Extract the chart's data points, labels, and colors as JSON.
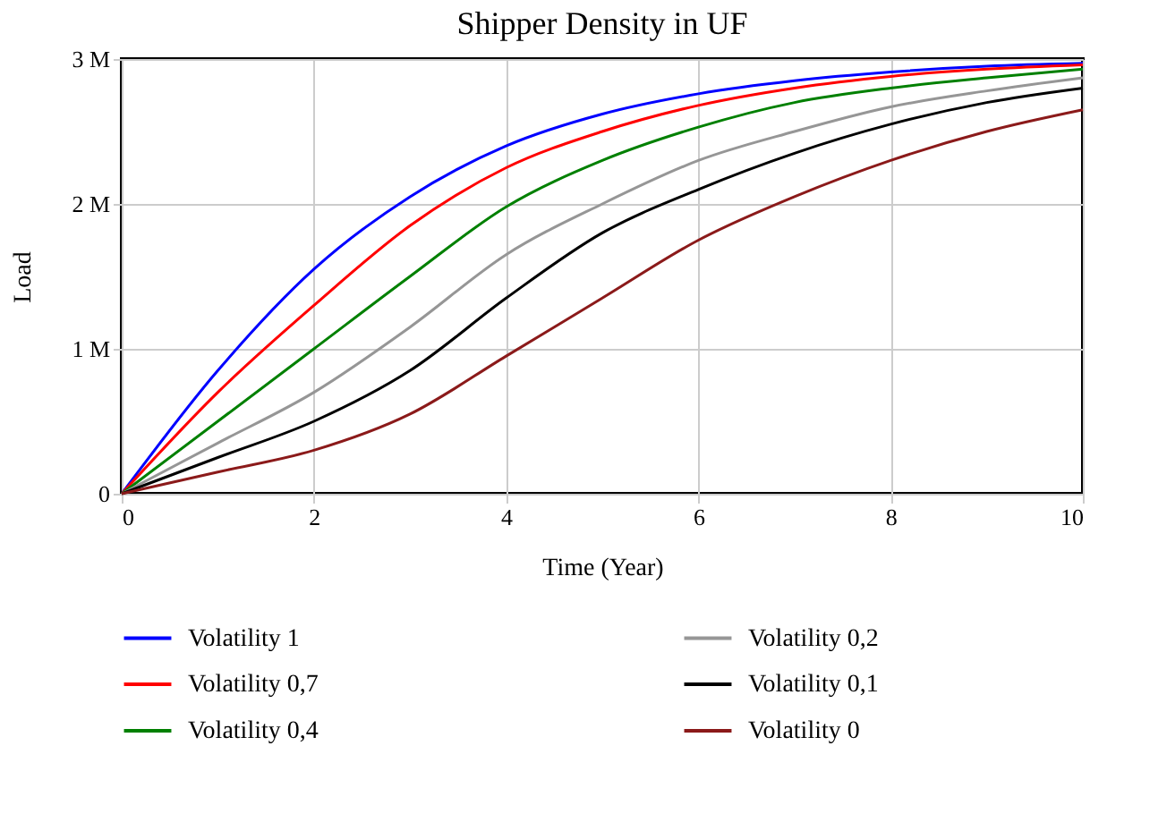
{
  "chart_data": {
    "type": "line",
    "title": "Shipper Density in UF",
    "xlabel": "Time (Year)",
    "ylabel": "Load",
    "x": [
      0,
      1,
      2,
      3,
      4,
      5,
      6,
      7,
      8,
      9,
      10
    ],
    "xlim": [
      0,
      10
    ],
    "xticks": [
      0,
      2,
      4,
      6,
      8,
      10
    ],
    "ylim": [
      0,
      3000000
    ],
    "yticks": [
      {
        "value": 0,
        "label": "0"
      },
      {
        "value": 1000000,
        "label": "1 M"
      },
      {
        "value": 2000000,
        "label": "2 M"
      },
      {
        "value": 3000000,
        "label": "3 M"
      }
    ],
    "grid": true,
    "legend": "bottom",
    "marker": "none",
    "line_style": "solid",
    "series": [
      {
        "name": "Volatility 1",
        "color": "#0000ff",
        "values": [
          0,
          850000,
          1550000,
          2050000,
          2400000,
          2620000,
          2760000,
          2850000,
          2910000,
          2950000,
          2970000
        ]
      },
      {
        "name": "Volatility 0,7",
        "color": "#ff0000",
        "values": [
          0,
          700000,
          1300000,
          1850000,
          2250000,
          2500000,
          2680000,
          2800000,
          2880000,
          2930000,
          2960000
        ]
      },
      {
        "name": "Volatility 0,4",
        "color": "#008000",
        "values": [
          0,
          500000,
          1000000,
          1500000,
          1980000,
          2300000,
          2530000,
          2700000,
          2800000,
          2870000,
          2930000
        ]
      },
      {
        "name": "Volatility 0,2",
        "color": "#969696",
        "values": [
          0,
          350000,
          700000,
          1150000,
          1650000,
          2000000,
          2300000,
          2500000,
          2670000,
          2780000,
          2870000
        ]
      },
      {
        "name": "Volatility 0,1",
        "color": "#000000",
        "values": [
          0,
          250000,
          500000,
          850000,
          1350000,
          1800000,
          2100000,
          2350000,
          2550000,
          2700000,
          2800000
        ]
      },
      {
        "name": "Volatility 0",
        "color": "#8b1a1a",
        "values": [
          0,
          150000,
          300000,
          550000,
          950000,
          1350000,
          1750000,
          2050000,
          2300000,
          2500000,
          2650000
        ]
      }
    ]
  }
}
